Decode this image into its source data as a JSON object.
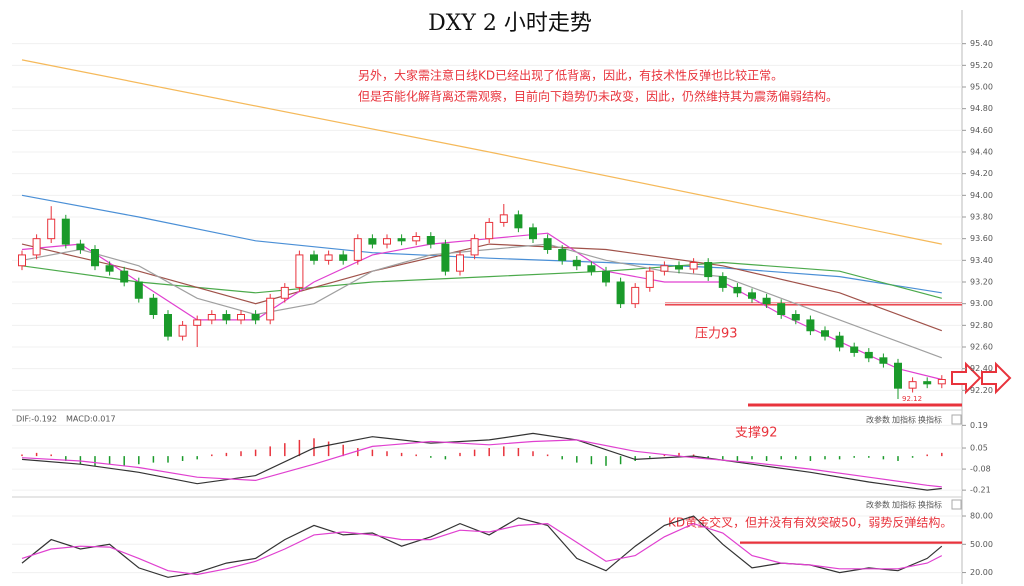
{
  "chart_data": [
    {
      "type": "candlestick",
      "title": "DXY 2 小时走势",
      "annotations": [
        "另外，大家需注意日线KD已经出现了低背离，因此，有技术性反弹也比较正常。",
        "但是否能化解背离还需观察，目前向下趋势仍未改变，因此，仍然维持其为震荡偏弱结构。",
        "压力93",
        "支撑92"
      ],
      "low_label": {
        "value": 92.12,
        "label": "92.12"
      },
      "up_color": "#e8333c",
      "down_color": "#1a9a2a",
      "open": [
        93.35,
        93.45,
        93.6,
        93.78,
        93.55,
        93.5,
        93.35,
        93.3,
        93.2,
        93.05,
        92.9,
        92.7,
        92.8,
        92.85,
        92.9,
        92.85,
        92.9,
        92.85,
        93.05,
        93.15,
        93.45,
        93.4,
        93.45,
        93.4,
        93.6,
        93.55,
        93.6,
        93.58,
        93.62,
        93.55,
        93.3,
        93.45,
        93.6,
        93.75,
        93.82,
        93.7,
        93.6,
        93.5,
        93.4,
        93.35,
        93.3,
        93.2,
        93.0,
        93.15,
        93.3,
        93.35,
        93.32,
        93.38,
        93.25,
        93.15,
        93.1,
        93.05,
        93.0,
        92.9,
        92.85,
        92.75,
        92.7,
        92.6,
        92.55,
        92.5,
        92.45,
        92.22,
        92.28,
        92.26
      ],
      "close": [
        93.45,
        93.6,
        93.78,
        93.55,
        93.5,
        93.35,
        93.3,
        93.2,
        93.05,
        92.9,
        92.7,
        92.8,
        92.85,
        92.9,
        92.85,
        92.9,
        92.85,
        93.05,
        93.15,
        93.45,
        93.4,
        93.45,
        93.4,
        93.6,
        93.55,
        93.6,
        93.58,
        93.62,
        93.55,
        93.3,
        93.45,
        93.6,
        93.75,
        93.82,
        93.7,
        93.6,
        93.5,
        93.4,
        93.35,
        93.3,
        93.2,
        93.0,
        93.15,
        93.3,
        93.35,
        93.32,
        93.38,
        93.25,
        93.15,
        93.1,
        93.05,
        93.0,
        92.9,
        92.85,
        92.75,
        92.7,
        92.6,
        92.55,
        92.5,
        92.45,
        92.22,
        92.28,
        92.26,
        92.3
      ],
      "high": [
        93.49,
        93.64,
        93.9,
        93.82,
        93.59,
        93.54,
        93.39,
        93.34,
        93.24,
        93.09,
        92.94,
        92.84,
        92.89,
        92.94,
        92.94,
        92.94,
        92.94,
        93.09,
        93.19,
        93.49,
        93.49,
        93.49,
        93.49,
        93.64,
        93.64,
        93.64,
        93.64,
        93.66,
        93.66,
        93.59,
        93.49,
        93.64,
        93.79,
        93.92,
        93.86,
        93.74,
        93.64,
        93.54,
        93.44,
        93.39,
        93.34,
        93.24,
        93.19,
        93.34,
        93.39,
        93.39,
        93.42,
        93.42,
        93.29,
        93.19,
        93.14,
        93.09,
        93.04,
        92.94,
        92.89,
        92.79,
        92.74,
        92.64,
        92.59,
        92.54,
        92.49,
        92.32,
        92.32,
        92.34
      ],
      "low": [
        93.31,
        93.41,
        93.56,
        93.51,
        93.46,
        93.31,
        93.26,
        93.16,
        93.01,
        92.86,
        92.66,
        92.66,
        92.6,
        92.81,
        92.81,
        92.81,
        92.81,
        92.81,
        93.01,
        93.11,
        93.36,
        93.36,
        93.36,
        93.36,
        93.51,
        93.51,
        93.54,
        93.54,
        93.51,
        93.26,
        93.26,
        93.41,
        93.56,
        93.71,
        93.66,
        93.56,
        93.46,
        93.36,
        93.31,
        93.26,
        93.16,
        92.96,
        92.96,
        93.11,
        93.26,
        93.28,
        93.28,
        93.21,
        93.11,
        93.06,
        93.01,
        92.96,
        92.86,
        92.81,
        92.71,
        92.66,
        92.56,
        92.51,
        92.46,
        92.41,
        92.12,
        92.18,
        92.22,
        92.22
      ],
      "lines": [
        {
          "color": "#f5b95a",
          "x": [
            0,
            32,
            63
          ],
          "values": [
            95.25,
            94.4,
            93.55
          ]
        },
        {
          "color": "#4a8fd6",
          "x": [
            0,
            8,
            16,
            24,
            32,
            40,
            48,
            56,
            63
          ],
          "values": [
            94.0,
            93.8,
            93.58,
            93.47,
            93.42,
            93.38,
            93.33,
            93.25,
            93.1
          ]
        },
        {
          "color": "#4caa4c",
          "x": [
            0,
            8,
            16,
            24,
            32,
            40,
            48,
            56,
            63
          ],
          "values": [
            93.35,
            93.2,
            93.1,
            93.2,
            93.25,
            93.3,
            93.38,
            93.3,
            93.05
          ]
        },
        {
          "color": "#a0524a",
          "x": [
            0,
            8,
            16,
            24,
            32,
            40,
            48,
            56,
            63
          ],
          "values": [
            93.55,
            93.3,
            93.0,
            93.3,
            93.55,
            93.5,
            93.35,
            93.1,
            92.75
          ]
        },
        {
          "color": "#e040d0",
          "x": [
            0,
            4,
            8,
            12,
            16,
            20,
            24,
            28,
            32,
            36,
            40,
            44,
            48,
            52,
            56,
            60,
            63
          ],
          "values": [
            93.5,
            93.55,
            93.2,
            92.85,
            92.85,
            93.2,
            93.45,
            93.55,
            93.6,
            93.65,
            93.3,
            93.2,
            93.2,
            92.9,
            92.65,
            92.4,
            92.3
          ]
        },
        {
          "color": "#a0a0a0",
          "x": [
            0,
            4,
            8,
            12,
            16,
            20,
            24,
            28,
            32,
            36,
            40,
            44,
            48,
            52,
            56,
            60,
            63
          ],
          "values": [
            93.4,
            93.5,
            93.35,
            93.05,
            92.9,
            93.0,
            93.3,
            93.45,
            93.5,
            93.55,
            93.4,
            93.3,
            93.25,
            93.05,
            92.85,
            92.65,
            92.5
          ]
        }
      ],
      "ylim": [
        92.0,
        95.6
      ],
      "yticks": [
        {
          "value": 95.4,
          "label": "95.40"
        },
        {
          "value": 95.2,
          "label": "95.20"
        },
        {
          "value": 95.0,
          "label": "95.00"
        },
        {
          "value": 94.8,
          "label": "94.80"
        },
        {
          "value": 94.6,
          "label": "94.60"
        },
        {
          "value": 94.4,
          "label": "94.40"
        },
        {
          "value": 94.2,
          "label": "94.20"
        },
        {
          "value": 94.0,
          "label": "94.00"
        },
        {
          "value": 93.8,
          "label": "93.80"
        },
        {
          "value": 93.6,
          "label": "93.60"
        },
        {
          "value": 93.4,
          "label": "93.40"
        },
        {
          "value": 93.2,
          "label": "93.20"
        },
        {
          "value": 93.0,
          "label": "93.00"
        },
        {
          "value": 92.8,
          "label": "92.80"
        },
        {
          "value": 92.6,
          "label": "92.60"
        },
        {
          "value": 92.4,
          "label": "92.40"
        },
        {
          "value": 92.2,
          "label": "92.20"
        }
      ]
    },
    {
      "type": "macd",
      "header": [
        "DIF:-0.192",
        "MACD:0.017"
      ],
      "buttons": [
        "改参数",
        "加指标",
        "换指标"
      ],
      "histogram": [
        0.01,
        0.02,
        0.01,
        -0.03,
        -0.05,
        -0.06,
        -0.05,
        -0.06,
        -0.05,
        -0.04,
        -0.04,
        -0.03,
        -0.02,
        0.01,
        0.02,
        0.03,
        0.04,
        0.06,
        0.08,
        0.1,
        0.11,
        0.09,
        0.07,
        0.05,
        0.04,
        0.03,
        0.02,
        0.01,
        -0.01,
        -0.02,
        0.02,
        0.04,
        0.05,
        0.06,
        0.05,
        0.03,
        0.01,
        -0.02,
        -0.04,
        -0.05,
        -0.06,
        -0.05,
        -0.03,
        -0.01,
        0.01,
        0.02,
        0.01,
        -0.01,
        -0.02,
        -0.03,
        -0.02,
        -0.03,
        -0.02,
        -0.02,
        -0.03,
        -0.02,
        -0.02,
        -0.01,
        -0.01,
        -0.02,
        -0.03,
        -0.01,
        0.01,
        0.02
      ],
      "up_color": "#e8333c",
      "down_color": "#1a9a2a",
      "lines": [
        {
          "color": "#333333",
          "x": [
            0,
            4,
            8,
            12,
            16,
            20,
            24,
            28,
            32,
            35,
            38,
            42,
            46,
            50,
            54,
            58,
            62,
            63
          ],
          "values": [
            -0.02,
            -0.05,
            -0.1,
            -0.17,
            -0.12,
            0.05,
            0.12,
            0.08,
            0.1,
            0.14,
            0.1,
            -0.02,
            0.0,
            -0.05,
            -0.1,
            -0.16,
            -0.21,
            -0.2
          ]
        },
        {
          "color": "#e040d0",
          "x": [
            0,
            4,
            8,
            12,
            16,
            20,
            24,
            28,
            32,
            35,
            38,
            42,
            46,
            50,
            54,
            58,
            62,
            63
          ],
          "values": [
            -0.01,
            -0.03,
            -0.07,
            -0.13,
            -0.15,
            -0.05,
            0.06,
            0.09,
            0.07,
            0.09,
            0.1,
            0.03,
            -0.01,
            -0.04,
            -0.08,
            -0.13,
            -0.18,
            -0.19
          ]
        }
      ],
      "ylim": [
        -0.24,
        0.26
      ],
      "yticks": [
        0.19,
        0.05,
        -0.08,
        -0.21
      ]
    },
    {
      "type": "line",
      "buttons": [
        "改参数",
        "加指标",
        "换指标"
      ],
      "annotation": "KD黄金交叉，但并没有有效突破50，弱势反弹结构。",
      "lines": [
        {
          "color": "#333333",
          "x": [
            0,
            2,
            4,
            6,
            8,
            10,
            12,
            14,
            16,
            18,
            20,
            22,
            24,
            26,
            28,
            30,
            32,
            34,
            36,
            38,
            40,
            42,
            44,
            46,
            48,
            50,
            52,
            54,
            56,
            58,
            60,
            62,
            63
          ],
          "values": [
            30,
            55,
            45,
            50,
            25,
            15,
            20,
            30,
            35,
            55,
            70,
            60,
            62,
            48,
            58,
            72,
            60,
            78,
            70,
            35,
            22,
            48,
            70,
            80,
            50,
            25,
            30,
            28,
            20,
            25,
            22,
            35,
            48
          ]
        },
        {
          "color": "#e040d0",
          "x": [
            0,
            2,
            4,
            6,
            8,
            10,
            12,
            14,
            16,
            18,
            20,
            22,
            24,
            26,
            28,
            30,
            32,
            34,
            36,
            38,
            40,
            42,
            44,
            46,
            48,
            50,
            52,
            54,
            56,
            58,
            60,
            62,
            63
          ],
          "values": [
            35,
            45,
            48,
            47,
            35,
            22,
            18,
            24,
            32,
            45,
            60,
            63,
            60,
            55,
            55,
            65,
            63,
            70,
            72,
            52,
            32,
            38,
            58,
            72,
            62,
            38,
            30,
            28,
            24,
            24,
            24,
            30,
            38
          ]
        }
      ],
      "ylim": [
        10,
        97
      ],
      "yticks": [
        {
          "value": 80,
          "label": "80.00"
        },
        {
          "value": 50,
          "label": "50.00"
        },
        {
          "value": 20,
          "label": "20.00"
        }
      ]
    }
  ]
}
